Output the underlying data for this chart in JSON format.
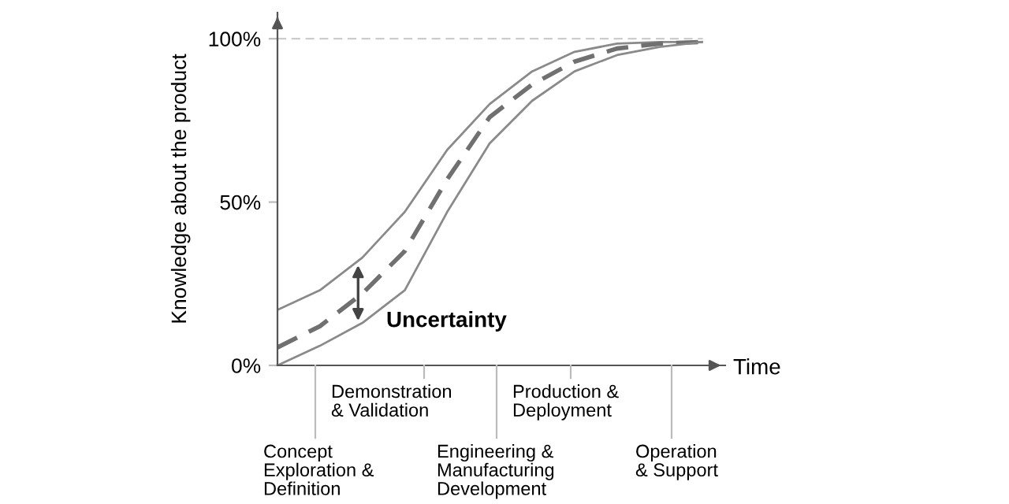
{
  "chart_data": {
    "type": "line",
    "ylabel": "Knowledge about the product",
    "xlabel": "Time",
    "categories": [
      null,
      null,
      null,
      null,
      null,
      null,
      null,
      null,
      null,
      null,
      null
    ],
    "series": [
      {
        "color": "#8a8a8a",
        "line_style": "solid",
        "values": [
          17,
          23,
          33,
          47,
          66,
          80,
          90,
          96,
          98.5,
          99,
          99
        ]
      },
      {
        "color": "#707070",
        "line_style": "dashed",
        "values": [
          5.5,
          12,
          22,
          35,
          57,
          76,
          86,
          93,
          97,
          98.5,
          99
        ]
      },
      {
        "color": "#8a8a8a",
        "line_style": "solid",
        "values": [
          0,
          6,
          13,
          23,
          47,
          68,
          81,
          90,
          95,
          97.5,
          99
        ]
      }
    ],
    "ylim": [
      0,
      108
    ],
    "yticks": [
      {
        "value": 0,
        "label": "0%"
      },
      {
        "value": 50,
        "label": "50%"
      },
      {
        "value": 100,
        "label": "100%"
      }
    ],
    "ref_lines": [
      {
        "axis": "y",
        "value": 100,
        "color": "#cccccc",
        "line_style": "dashed"
      }
    ],
    "annotations": [
      "Uncertainty",
      "Concept\nExploration &\nDefinition",
      "Demonstration\n& Validation",
      "Engineering &\nManufacturing\nDevelopment",
      "Production &\nDeployment",
      "Operation\n& Support"
    ],
    "grid": false,
    "legend": false,
    "marker": "none"
  }
}
